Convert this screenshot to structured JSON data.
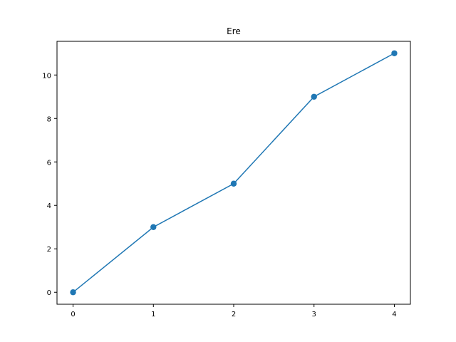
{
  "chart_data": {
    "type": "line",
    "title": "Ere",
    "xlabel": "",
    "ylabel": "",
    "x": [
      0,
      1,
      2,
      3,
      4
    ],
    "series": [
      {
        "values": [
          0,
          3,
          5,
          9,
          11
        ],
        "color": "#1f77b4",
        "marker": "circle"
      }
    ],
    "x_ticks": [
      "0",
      "1",
      "2",
      "3",
      "4"
    ],
    "y_ticks": [
      "0",
      "2",
      "4",
      "6",
      "8",
      "10"
    ],
    "xlim": [
      -0.2,
      4.2
    ],
    "ylim": [
      -0.55,
      11.55
    ],
    "grid": false,
    "legend": "none"
  }
}
